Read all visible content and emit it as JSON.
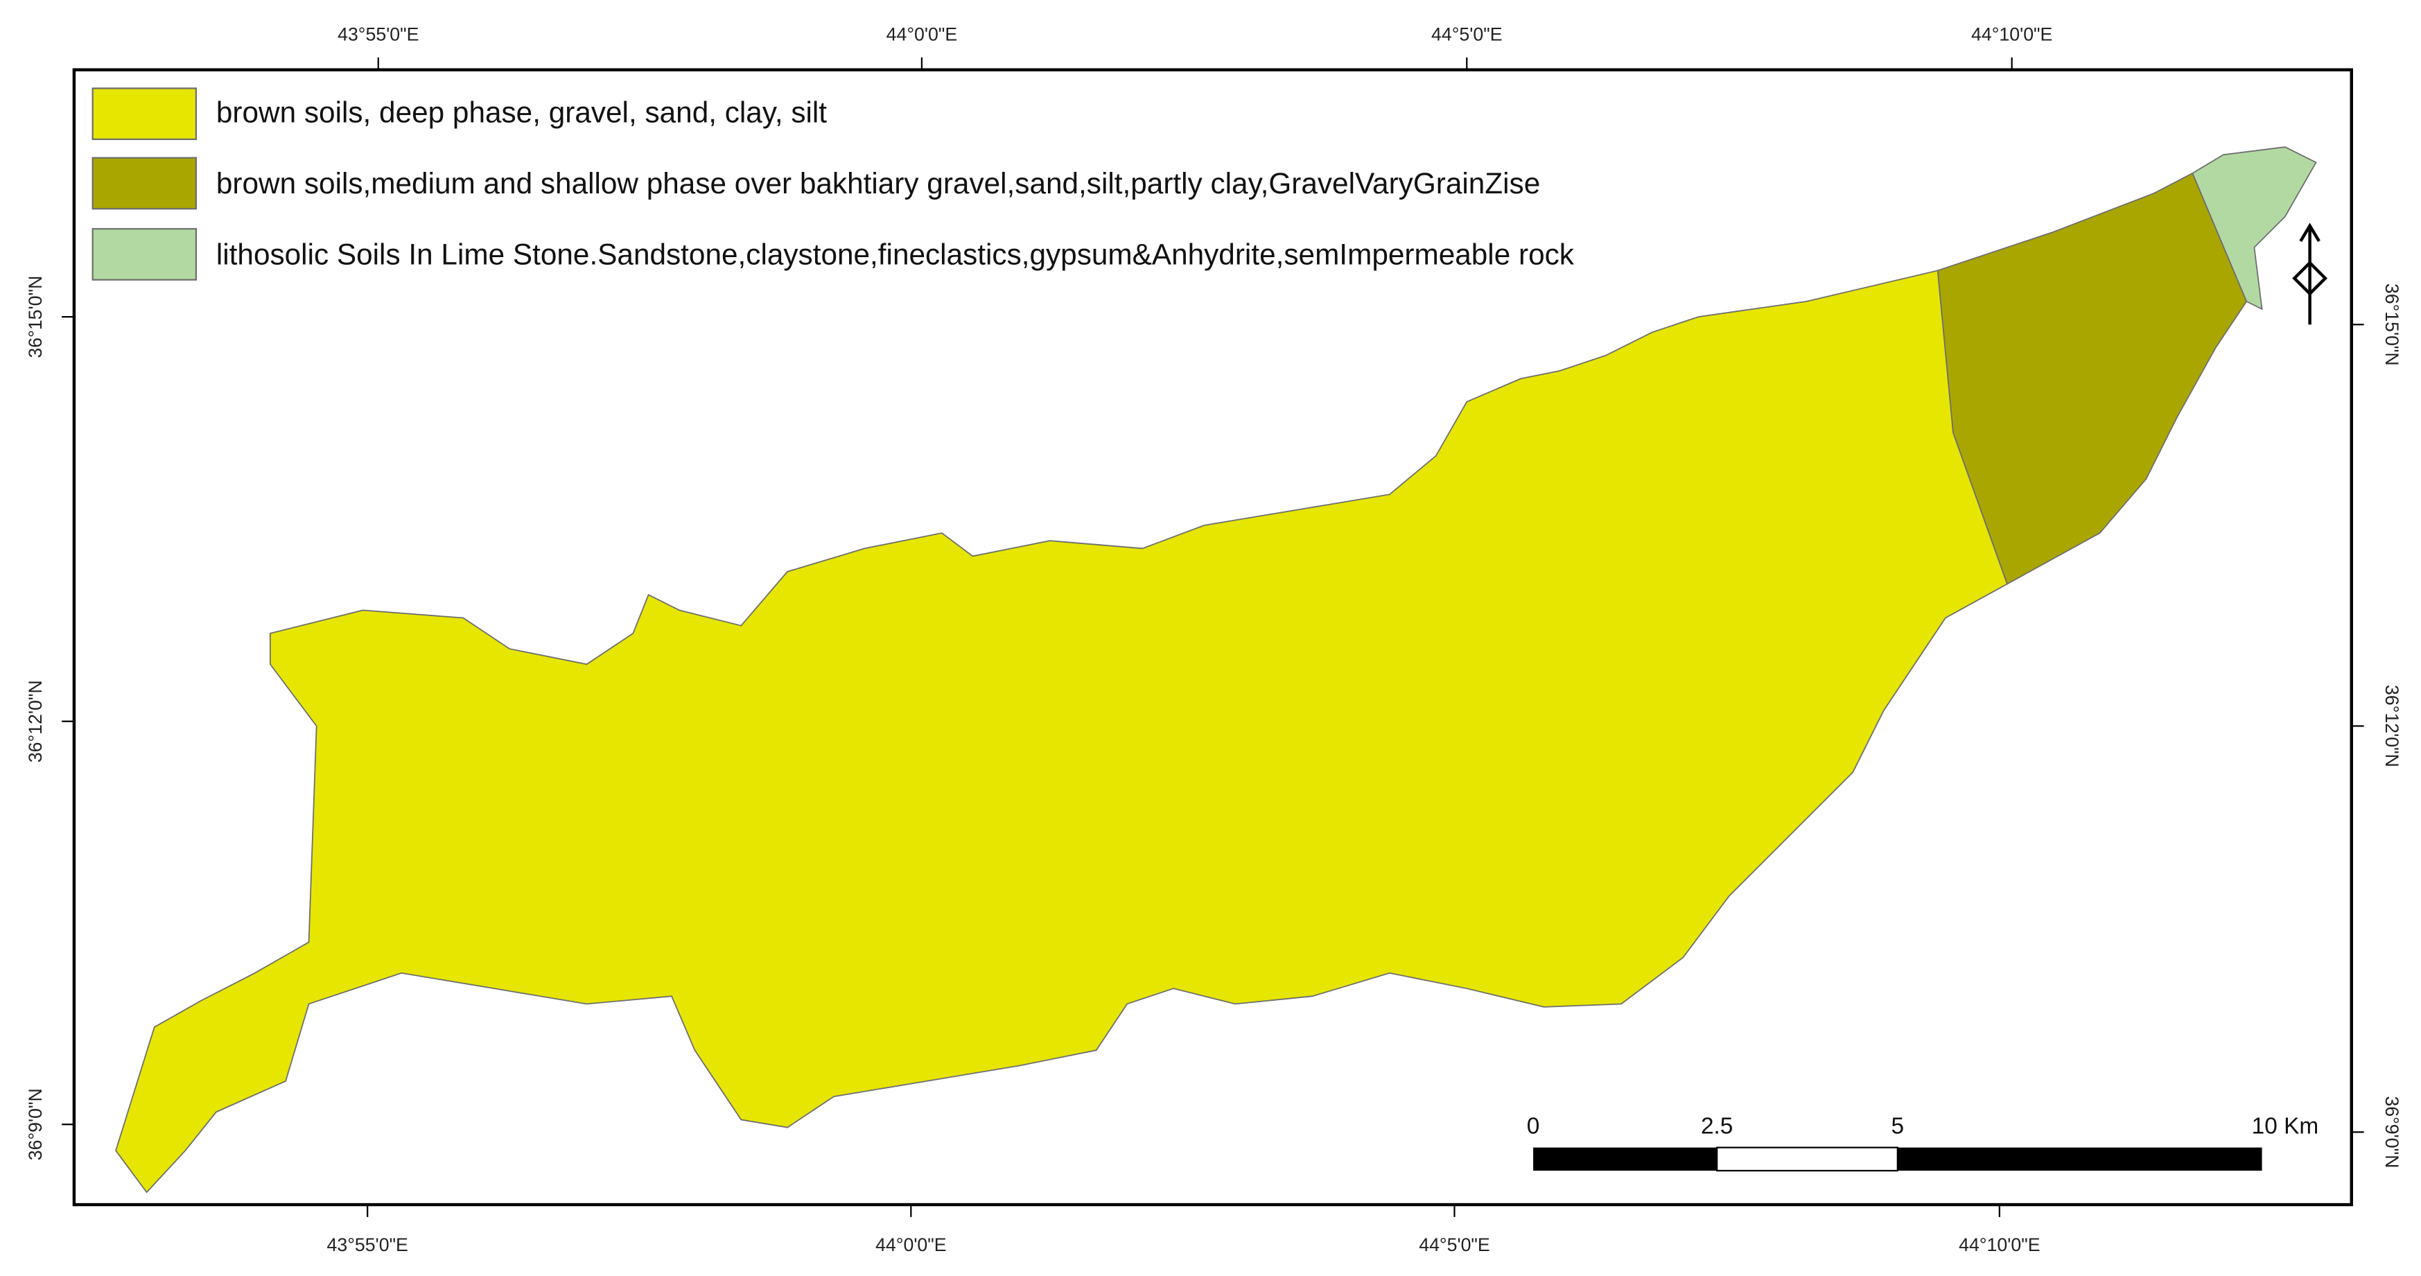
{
  "map": {
    "legend": [
      "brown soils, deep phase, gravel, sand, clay, silt",
      "brown soils,medium and shallow phase over bakhtiary gravel,sand,silt,partly clay,GravelVaryGrainZise",
      "lithosolic Soils In Lime Stone.Sandstone,claystone,fineclastics,gypsum&Anhydrite,semImpermeable rock"
    ],
    "top_labels": [
      "43°55'0\"E",
      "44°0'0\"E",
      "44°5'0\"E",
      "44°10'0\"E"
    ],
    "bottom_labels": [
      "43°55'0\"E",
      "44°0'0\"E",
      "44°5'0\"E",
      "44°10'0\"E"
    ],
    "left_labels": [
      "36°15'0\"N",
      "36°12'0\"N",
      "36°9'0\"N"
    ],
    "right_labels": [
      "36°15'0\"N",
      "36°12'0\"N",
      "36°9'0\"N"
    ],
    "scale_bar": [
      "0",
      "2.5",
      "5",
      "10 Km"
    ]
  }
}
